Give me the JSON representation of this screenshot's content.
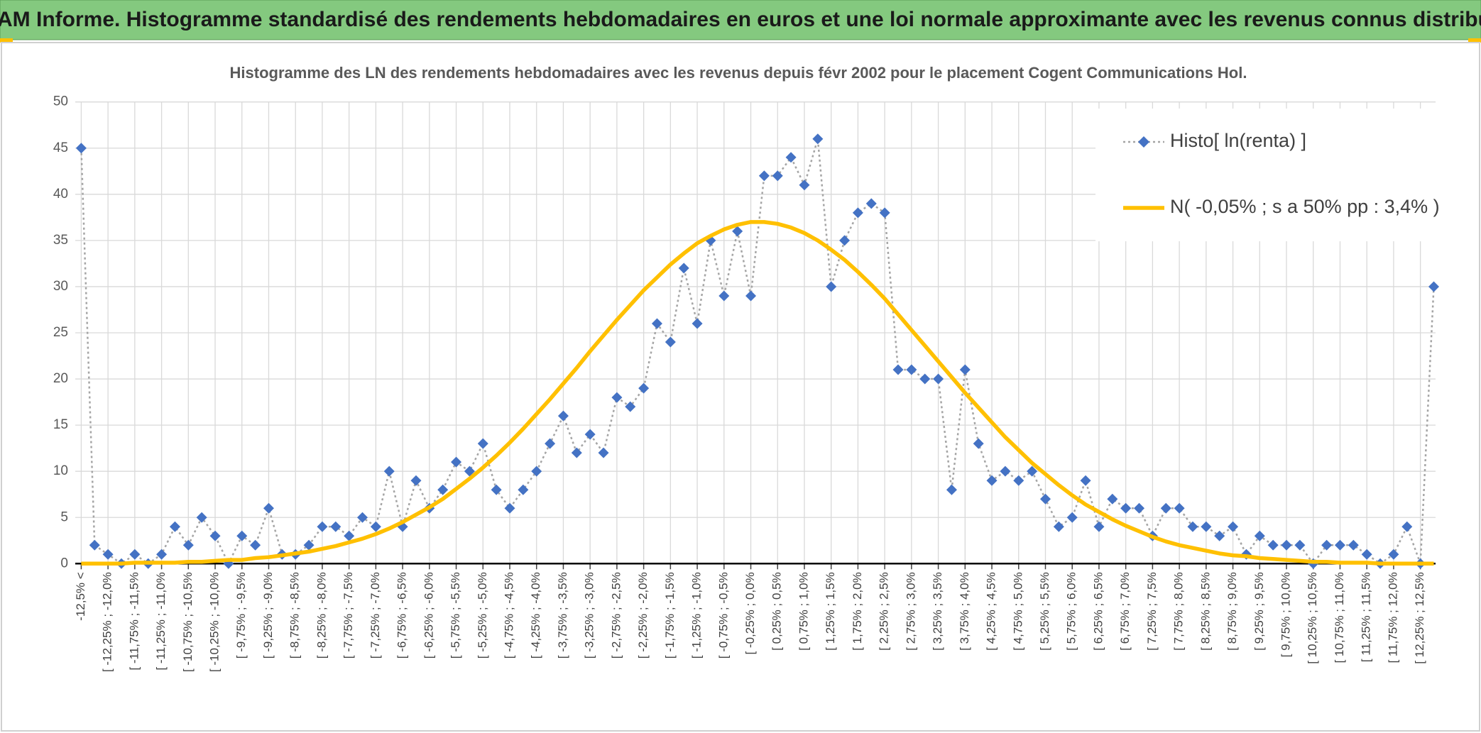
{
  "header": {
    "title": "ADAM Informe. Histogramme standardisé des rendements hebdomadaires en euros et une loi normale approximante avec les revenus connus distribués"
  },
  "chart_data": {
    "type": "line",
    "title": "Histogramme des LN des rendements hebdomadaires avec les revenus depuis févr 2002 pour le placement Cogent Communications Hol.",
    "categories": [
      "-12,5% <",
      null,
      "[ -12,25% ; -12,0%",
      null,
      "[ -11,75% ; -11,5%",
      null,
      "[ -11,25% ; -11,0%",
      null,
      "[ -10,75% ; -10,5%",
      null,
      "[ -10,25% ; -10,0%",
      null,
      "[ -9,75% ; -9,5%",
      null,
      "[ -9,25% ; -9,0%",
      null,
      "[ -8,75% ; -8,5%",
      null,
      "[ -8,25% ; -8,0%",
      null,
      "[ -7,75% ; -7,5%",
      null,
      "[ -7,25% ; -7,0%",
      null,
      "[ -6,75% ; -6,5%",
      null,
      "[ -6,25% ; -6,0%",
      null,
      "[ -5,75% ; -5,5%",
      null,
      "[ -5,25% ; -5,0%",
      null,
      "[ -4,75% ; -4,5%",
      null,
      "[ -4,25% ; -4,0%",
      null,
      "[ -3,75% ; -3,5%",
      null,
      "[ -3,25% ; -3,0%",
      null,
      "[ -2,75% ; -2,5%",
      null,
      "[ -2,25% ; -2,0%",
      null,
      "[ -1,75% ; -1,5%",
      null,
      "[ -1,25% ; -1,0%",
      null,
      "[ -0,75% ; -0,5%",
      null,
      "[ -0,25% ; 0,0%",
      null,
      "[ 0,25% ; 0,5%",
      null,
      "[ 0,75% ; 1,0%",
      null,
      "[ 1,25% ; 1,5%",
      null,
      "[ 1,75% ; 2,0%",
      null,
      "[ 2,25% ; 2,5%",
      null,
      "[ 2,75% ; 3,0%",
      null,
      "[ 3,25% ; 3,5%",
      null,
      "[ 3,75% ; 4,0%",
      null,
      "[ 4,25% ; 4,5%",
      null,
      "[ 4,75% ; 5,0%",
      null,
      "[ 5,25% ; 5,5%",
      null,
      "[ 5,75% ; 6,0%",
      null,
      "[ 6,25% ; 6,5%",
      null,
      "[ 6,75% ; 7,0%",
      null,
      "[ 7,25% ; 7,5%",
      null,
      "[ 7,75% ; 8,0%",
      null,
      "[ 8,25% ; 8,5%",
      null,
      "[ 8,75% ; 9,0%",
      null,
      "[ 9,25% ; 9,5%",
      null,
      "[ 9,75% ; 10,0%",
      null,
      "[ 10,25% ; 10,5%",
      null,
      "[ 10,75% ; 11,0%",
      null,
      "[ 11,25% ; 11,5%",
      null,
      "[ 11,75% ; 12,0%",
      null,
      "[ 12,25% ; 12,5%",
      null
    ],
    "series": [
      {
        "name": "Histo[ ln(renta) ]",
        "color": "#4472c4",
        "marker": "diamond",
        "line_color": "#a5a5a5",
        "line_style": "dotted",
        "values": [
          45,
          2,
          1,
          0,
          1,
          0,
          1,
          4,
          2,
          5,
          3,
          0,
          3,
          2,
          6,
          1,
          1,
          2,
          4,
          4,
          3,
          5,
          4,
          10,
          4,
          9,
          6,
          8,
          11,
          10,
          13,
          8,
          6,
          8,
          10,
          13,
          16,
          12,
          14,
          12,
          18,
          17,
          19,
          26,
          24,
          32,
          26,
          35,
          29,
          36,
          29,
          42,
          42,
          44,
          41,
          46,
          30,
          35,
          38,
          39,
          38,
          21,
          21,
          20,
          20,
          8,
          21,
          13,
          9,
          10,
          9,
          10,
          7,
          4,
          5,
          9,
          4,
          7,
          6,
          6,
          3,
          6,
          6,
          4,
          4,
          3,
          4,
          1,
          3,
          2,
          2,
          2,
          0,
          2,
          2,
          2,
          1,
          0,
          1,
          4,
          0,
          30
        ]
      },
      {
        "name": "N( -0,05% ; s a 50% pp : 3,4% )",
        "color": "#ffc000",
        "line_style": "solid",
        "values": [
          0,
          0,
          0,
          0,
          0.1,
          0.1,
          0.1,
          0.1,
          0.2,
          0.2,
          0.3,
          0.4,
          0.4,
          0.6,
          0.7,
          0.9,
          1.1,
          1.3,
          1.6,
          1.9,
          2.3,
          2.7,
          3.2,
          3.8,
          4.5,
          5.3,
          6.1,
          7.0,
          8.1,
          9.2,
          10.4,
          11.7,
          13.1,
          14.6,
          16.2,
          17.8,
          19.5,
          21.2,
          23.0,
          24.7,
          26.4,
          28.0,
          29.6,
          31.0,
          32.4,
          33.6,
          34.7,
          35.5,
          36.2,
          36.7,
          37.0,
          37.0,
          36.8,
          36.4,
          35.8,
          35.0,
          34.0,
          32.9,
          31.6,
          30.2,
          28.7,
          27.0,
          25.3,
          23.6,
          21.9,
          20.2,
          18.5,
          16.9,
          15.3,
          13.7,
          12.3,
          10.9,
          9.7,
          8.5,
          7.4,
          6.4,
          5.6,
          4.8,
          4.1,
          3.5,
          2.9,
          2.4,
          2.0,
          1.7,
          1.4,
          1.1,
          0.9,
          0.8,
          0.6,
          0.5,
          0.4,
          0.3,
          0.2,
          0.2,
          0.1,
          0.1,
          0.1,
          0,
          0,
          0,
          0,
          0
        ]
      }
    ],
    "ylim": [
      0,
      50
    ],
    "yticks": [
      0,
      5,
      10,
      15,
      20,
      25,
      30,
      35,
      40,
      45,
      50
    ],
    "grid": true,
    "legend": "top-right"
  }
}
